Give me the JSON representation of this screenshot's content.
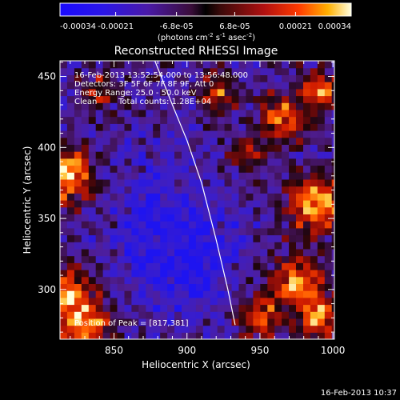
{
  "chart_data": {
    "type": "heatmap",
    "title": "Reconstructed RHESSI Image",
    "xlabel": "Heliocentric X (arcsec)",
    "ylabel": "Heliocentric Y (arcsec)",
    "xlim": [
      813,
      1001
    ],
    "ylim": [
      265,
      461
    ],
    "x_ticks": [
      850,
      900,
      950,
      1000
    ],
    "y_ticks": [
      300,
      350,
      400,
      450
    ],
    "x_tick_labels": [
      "850",
      "900",
      "950",
      "1000"
    ],
    "y_tick_labels": [
      "300",
      "350",
      "400",
      "450"
    ],
    "colorbar": {
      "range": [
        -0.00034,
        0.00034
      ],
      "ticks": [
        -0.00034,
        -0.00021,
        -6.8e-05,
        6.8e-05,
        0.00021,
        0.00034
      ],
      "tick_labels": [
        "-0.00034",
        "-0.00021",
        "-6.8e-05",
        "6.8e-05",
        "0.00021",
        "0.00034"
      ],
      "unit_label": "(photons cm",
      "unit_exp1": "-2",
      "unit_mid": " s",
      "unit_exp2": "-1",
      "unit_mid2": " asec",
      "unit_exp3": "-2",
      "unit_end": ")"
    },
    "annotations": {
      "time_range": "16-Feb-2013 13:52:54.000 to 13:56:48.000",
      "detectors": "Detectors: 3F 5F 6F 7F 8F 9F, Att 0",
      "energy": "Energy Range: 25.0 - 50.0 keV",
      "method": "Clean",
      "total_counts": "Total counts: 1.28E+04",
      "peak": "Position of Peak = [817,381]"
    },
    "peak_position": [
      817,
      381
    ],
    "limb_curve": [
      [
        878,
        461
      ],
      [
        890,
        430
      ],
      [
        900,
        405
      ],
      [
        910,
        375
      ],
      [
        920,
        335
      ],
      [
        928,
        300
      ],
      [
        933,
        275
      ]
    ],
    "hot_regions": [
      {
        "cx": 817,
        "cy": 381,
        "r": 18,
        "level": 1.0
      },
      {
        "cx": 818,
        "cy": 300,
        "r": 16,
        "level": 0.8
      },
      {
        "cx": 830,
        "cy": 275,
        "r": 18,
        "level": 0.85
      },
      {
        "cx": 990,
        "cy": 360,
        "r": 20,
        "level": 0.9
      },
      {
        "cx": 975,
        "cy": 305,
        "r": 18,
        "level": 0.85
      },
      {
        "cx": 950,
        "cy": 280,
        "r": 14,
        "level": 0.7
      },
      {
        "cx": 990,
        "cy": 280,
        "r": 14,
        "level": 0.8
      },
      {
        "cx": 965,
        "cy": 420,
        "r": 16,
        "level": 0.75
      },
      {
        "cx": 920,
        "cy": 440,
        "r": 14,
        "level": 0.6
      },
      {
        "cx": 990,
        "cy": 440,
        "r": 14,
        "level": 0.7
      },
      {
        "cx": 840,
        "cy": 440,
        "r": 12,
        "level": 0.5
      },
      {
        "cx": 940,
        "cy": 395,
        "r": 12,
        "level": 0.55
      }
    ],
    "cold_regions": [
      {
        "cx": 880,
        "cy": 360,
        "r": 30
      },
      {
        "cx": 910,
        "cy": 330,
        "r": 28
      },
      {
        "cx": 900,
        "cy": 300,
        "r": 22
      },
      {
        "cx": 870,
        "cy": 320,
        "r": 20
      }
    ]
  },
  "footer": {
    "timestamp": "16-Feb-2013 10:37"
  }
}
